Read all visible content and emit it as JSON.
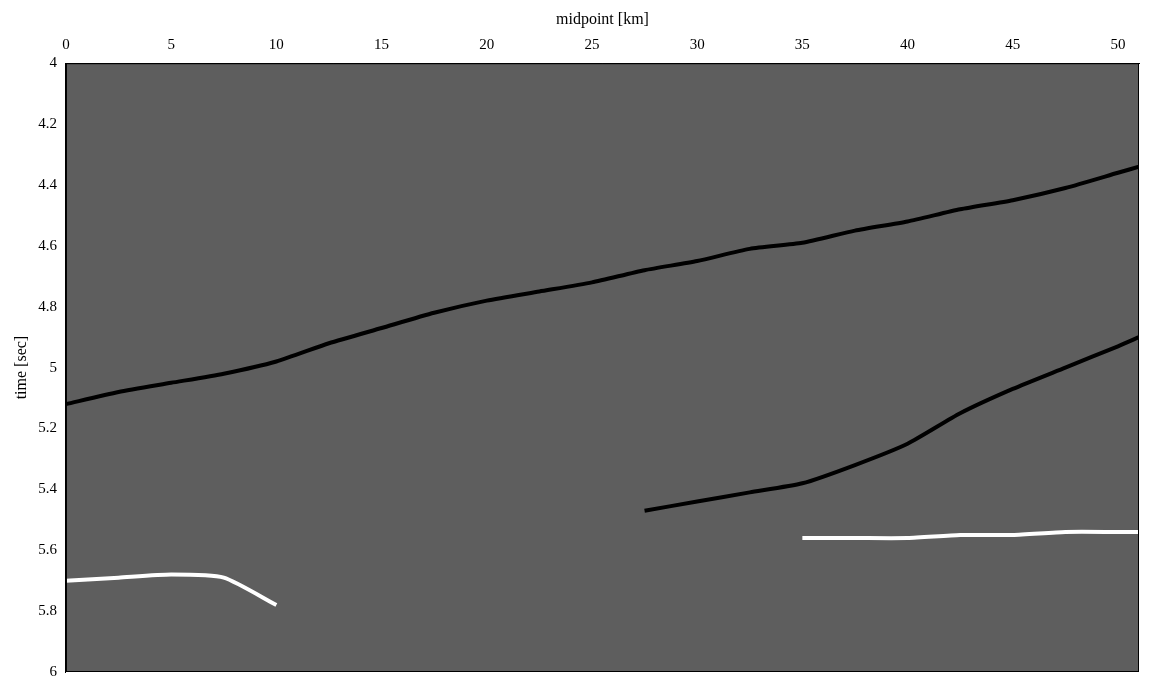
{
  "chart_data": {
    "type": "line",
    "x_label": "midpoint [km]",
    "y_label": "time [sec]",
    "x": [
      0,
      2.5,
      5,
      7.5,
      10,
      12.5,
      15,
      17.5,
      20,
      22.5,
      25,
      27.5,
      30,
      32.5,
      35,
      37.5,
      40,
      42.5,
      45,
      47.5,
      50,
      51
    ],
    "series": [
      {
        "color": "#000000",
        "values": [
          5.12,
          5.08,
          5.05,
          5.02,
          4.98,
          4.92,
          4.87,
          4.82,
          4.78,
          4.75,
          4.72,
          4.68,
          4.65,
          4.61,
          4.59,
          4.55,
          4.52,
          4.48,
          4.45,
          4.41,
          4.36,
          4.34
        ]
      },
      {
        "color": "#000000",
        "values": [
          null,
          null,
          null,
          null,
          null,
          null,
          null,
          null,
          null,
          null,
          null,
          5.47,
          5.44,
          5.41,
          5.38,
          5.32,
          5.25,
          5.15,
          5.07,
          5.0,
          4.93,
          4.9
        ]
      },
      {
        "color": "#ffffff",
        "values": [
          5.7,
          5.69,
          5.68,
          5.69,
          5.78,
          null,
          null,
          null,
          null,
          null,
          null,
          null,
          null,
          null,
          null,
          null,
          null,
          null,
          null,
          null,
          null,
          null
        ]
      },
      {
        "color": "#ffffff",
        "values": [
          null,
          null,
          null,
          null,
          null,
          null,
          null,
          null,
          null,
          null,
          null,
          null,
          null,
          null,
          5.56,
          5.56,
          5.56,
          5.55,
          5.55,
          5.54,
          5.54,
          5.54
        ]
      }
    ],
    "xlim": [
      0,
      51
    ],
    "xticks": [
      0,
      5,
      10,
      15,
      20,
      25,
      30,
      35,
      40,
      45,
      50
    ],
    "ylim": [
      6,
      4
    ],
    "yticks": [
      4,
      4.2,
      4.4,
      4.6,
      4.8,
      5,
      5.2,
      5.4,
      5.6,
      5.8,
      6
    ],
    "grid": false
  }
}
